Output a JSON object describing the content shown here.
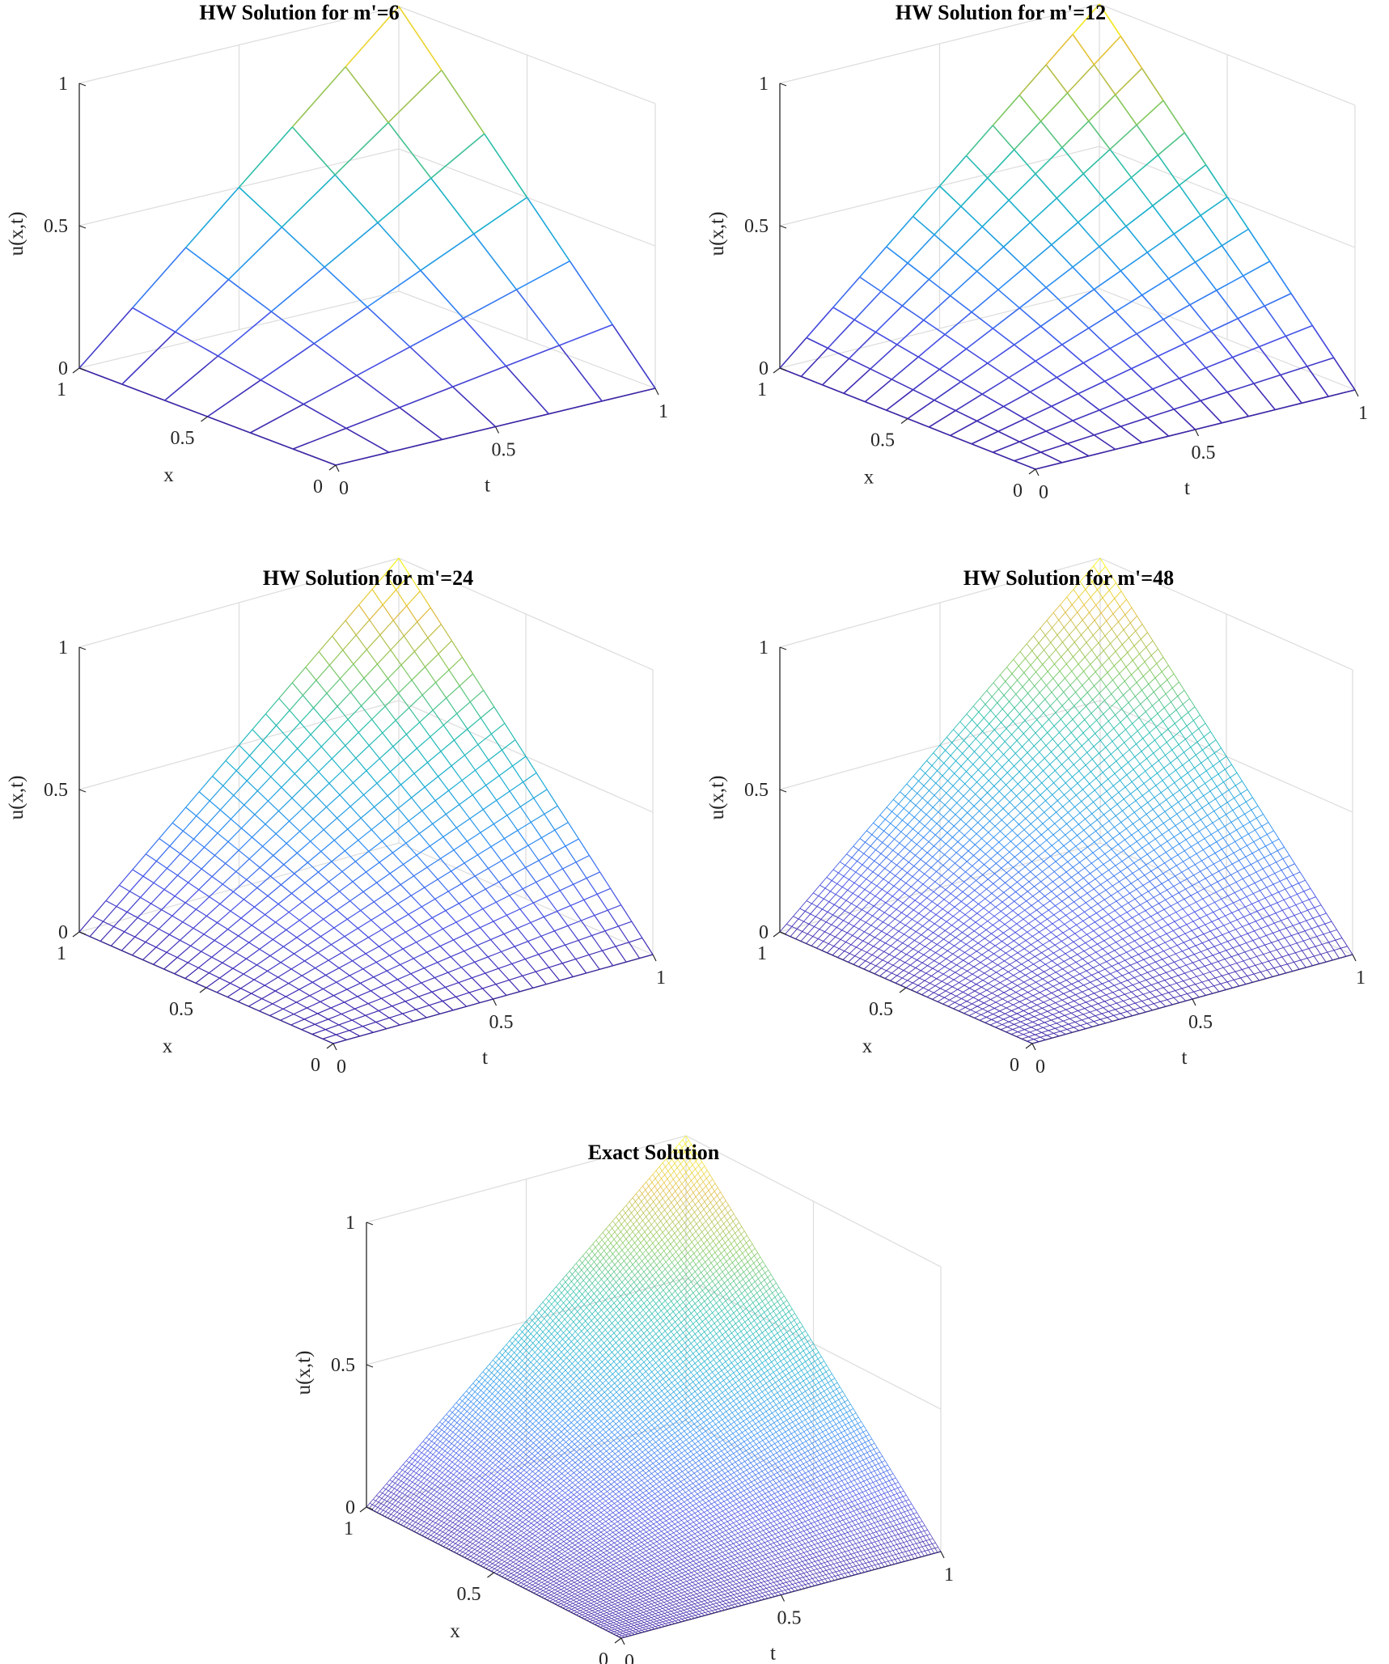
{
  "chart_data": [
    {
      "type": "surface-mesh",
      "title": "HW Solution for m'=6",
      "resolution": 6,
      "xlabel": "x",
      "ylabel": "t",
      "zlabel": "u(x,t)",
      "x_ticks": [
        "0",
        "0.5",
        "1"
      ],
      "t_ticks": [
        "0",
        "0.5",
        "1"
      ],
      "z_ticks": [
        "0",
        "0.5",
        "1"
      ],
      "xlim": [
        0,
        1
      ],
      "tlim": [
        0,
        1
      ],
      "zlim": [
        0,
        1
      ],
      "grid": true,
      "colormap": "parula"
    },
    {
      "type": "surface-mesh",
      "title": "HW Solution for m'=12",
      "resolution": 12,
      "xlabel": "x",
      "ylabel": "t",
      "zlabel": "u(x,t)",
      "x_ticks": [
        "0",
        "0.5",
        "1"
      ],
      "t_ticks": [
        "0",
        "0.5",
        "1"
      ],
      "z_ticks": [
        "0",
        "0.5",
        "1"
      ],
      "xlim": [
        0,
        1
      ],
      "tlim": [
        0,
        1
      ],
      "zlim": [
        0,
        1
      ],
      "grid": true,
      "colormap": "parula"
    },
    {
      "type": "surface-mesh",
      "title": "HW Solution for m'=24",
      "resolution": 24,
      "xlabel": "x",
      "ylabel": "t",
      "zlabel": "u(x,t)",
      "x_ticks": [
        "0",
        "0.5",
        "1"
      ],
      "t_ticks": [
        "0",
        "0.5",
        "1"
      ],
      "z_ticks": [
        "0",
        "0.5",
        "1"
      ],
      "xlim": [
        0,
        1
      ],
      "tlim": [
        0,
        1
      ],
      "zlim": [
        0,
        1
      ],
      "grid": true,
      "colormap": "parula"
    },
    {
      "type": "surface-mesh",
      "title": "HW Solution for m'=48",
      "resolution": 48,
      "xlabel": "x",
      "ylabel": "t",
      "zlabel": "u(x,t)",
      "x_ticks": [
        "0",
        "0.5",
        "1"
      ],
      "t_ticks": [
        "0",
        "0.5",
        "1"
      ],
      "z_ticks": [
        "0",
        "0.5",
        "1"
      ],
      "xlim": [
        0,
        1
      ],
      "tlim": [
        0,
        1
      ],
      "zlim": [
        0,
        1
      ],
      "grid": true,
      "colormap": "parula"
    },
    {
      "type": "surface-mesh",
      "title": "Exact Solution",
      "resolution": 96,
      "xlabel": "x",
      "ylabel": "t",
      "zlabel": "u(x,t)",
      "x_ticks": [
        "0",
        "0.5",
        "1"
      ],
      "t_ticks": [
        "0",
        "0.5",
        "1"
      ],
      "z_ticks": [
        "0",
        "0.5",
        "1"
      ],
      "xlim": [
        0,
        1
      ],
      "tlim": [
        0,
        1
      ],
      "zlim": [
        0,
        1
      ],
      "grid": true,
      "colormap": "parula"
    }
  ]
}
